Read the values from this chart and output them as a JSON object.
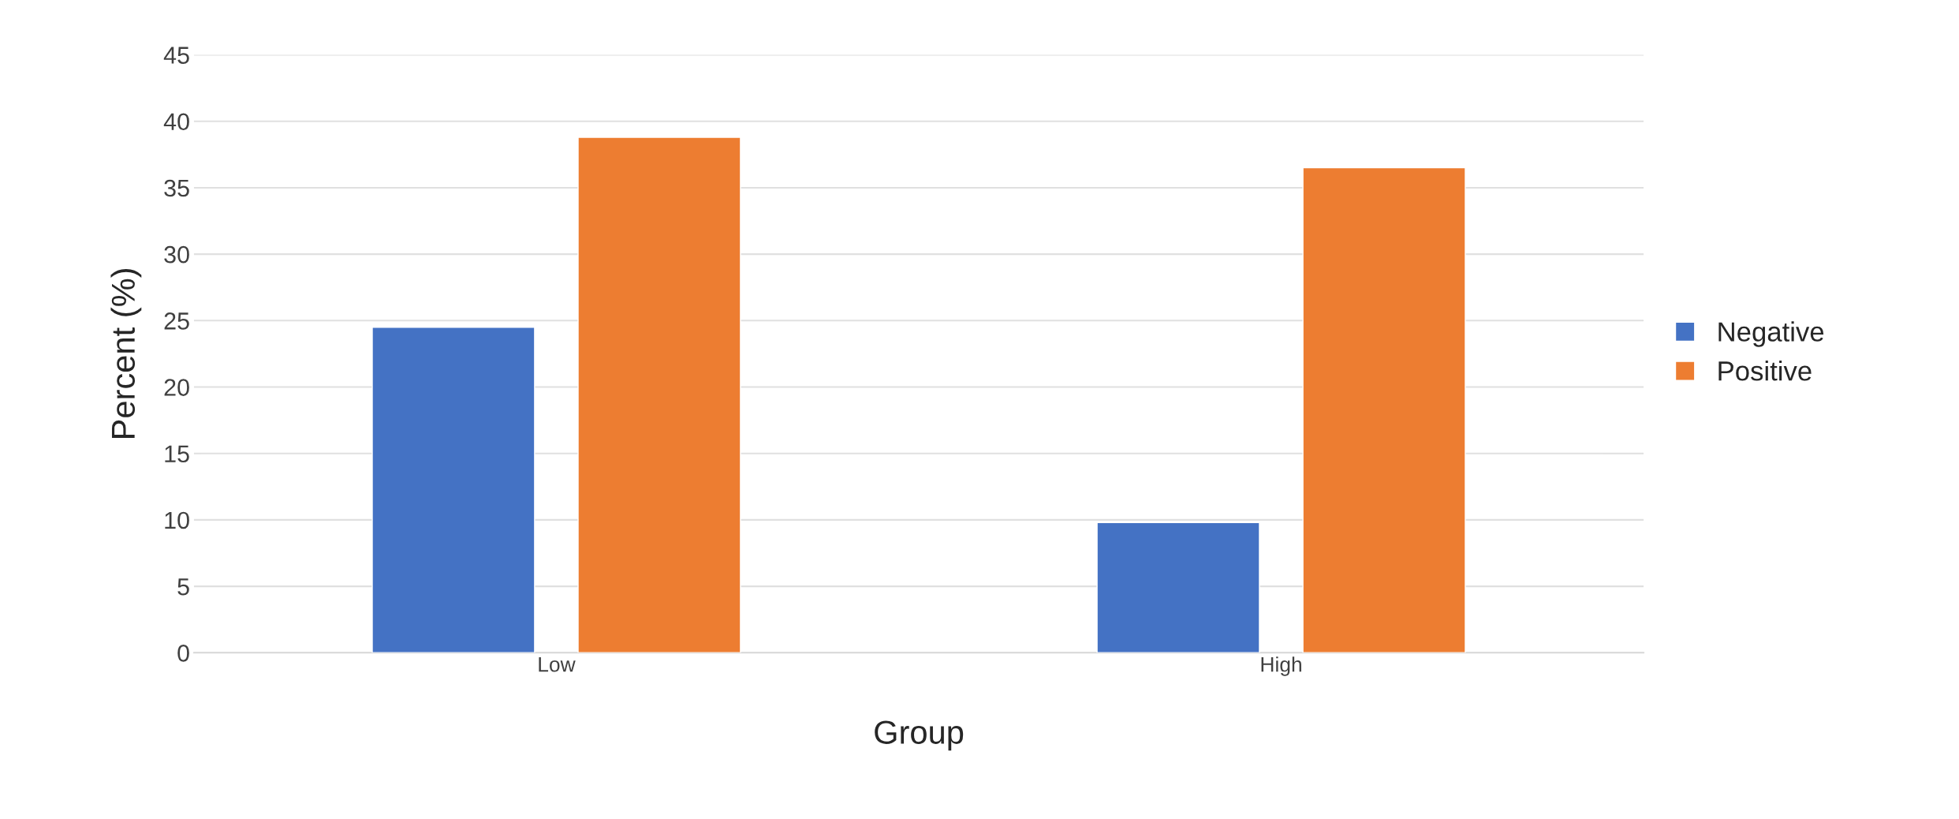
{
  "chart_data": {
    "type": "bar",
    "xlabel": "Group",
    "ylabel": "Percent (%)",
    "categories": [
      "Low",
      "High"
    ],
    "series": [
      {
        "name": "Negative",
        "color": "#4472c4",
        "values": [
          24.5,
          9.8
        ]
      },
      {
        "name": "Positive",
        "color": "#ed7d31",
        "values": [
          38.8,
          36.5
        ]
      }
    ],
    "ylim": [
      0,
      45
    ],
    "yticks": [
      0,
      5,
      10,
      15,
      20,
      25,
      30,
      35,
      40,
      45
    ],
    "grid": "y",
    "legend": "right"
  }
}
